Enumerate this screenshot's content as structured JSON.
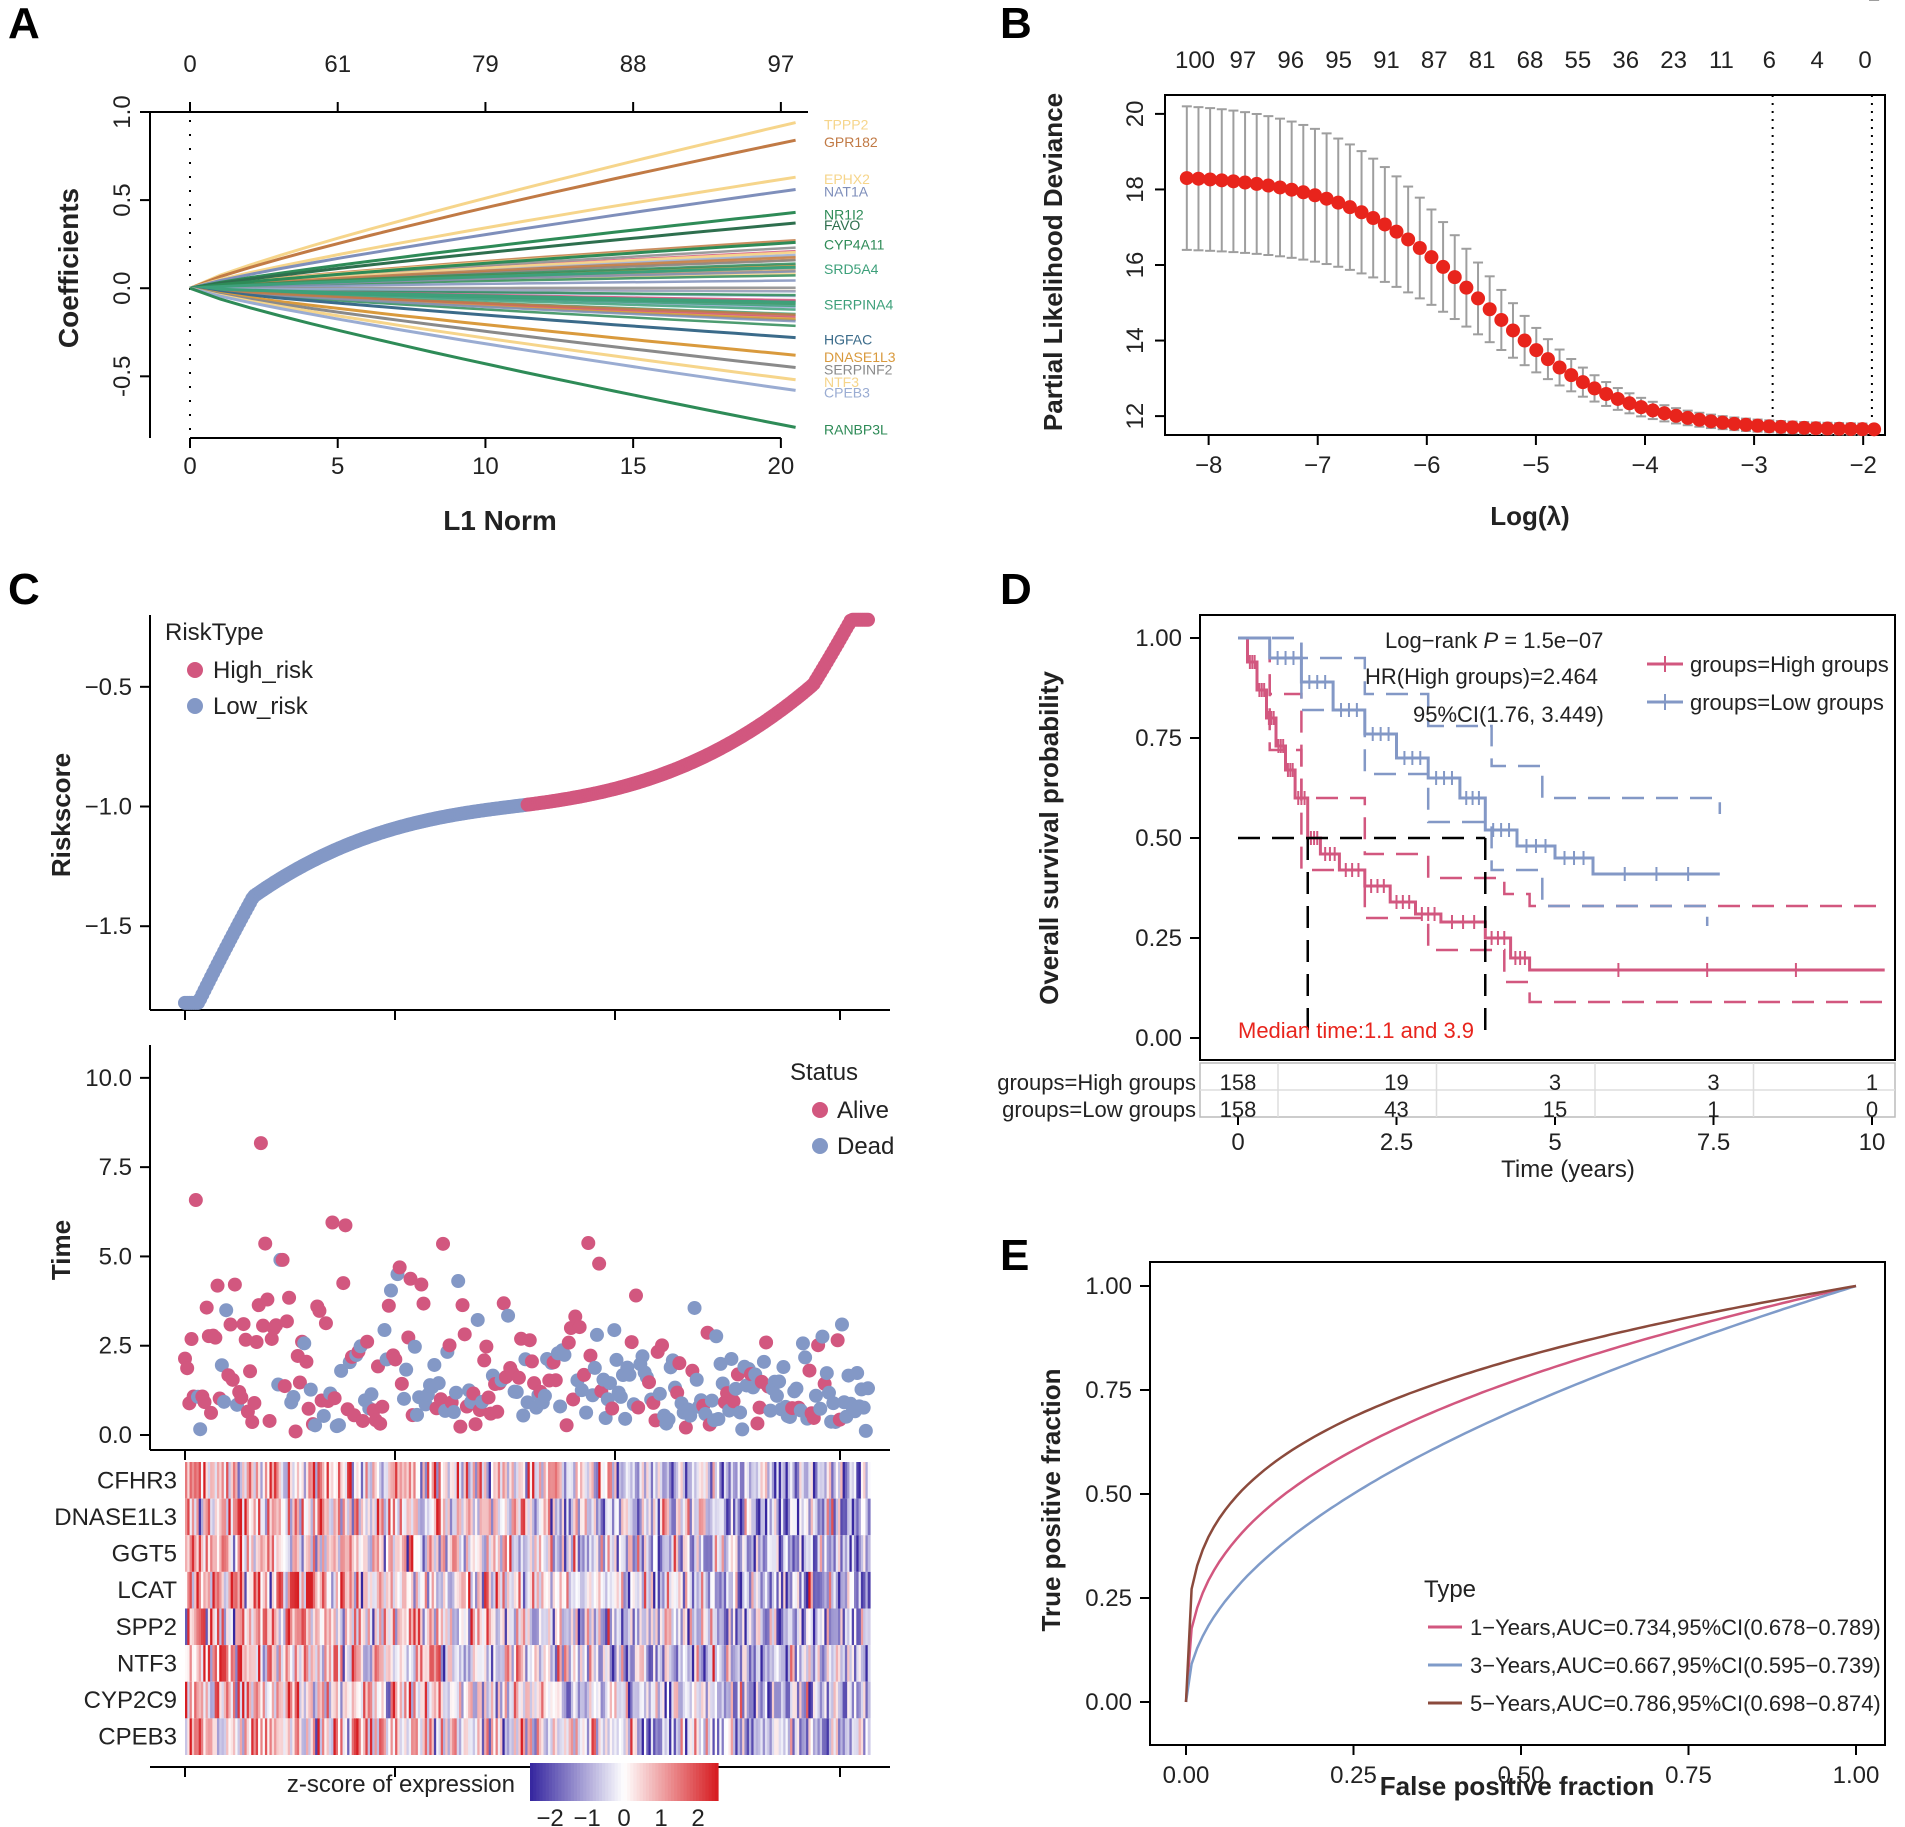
{
  "colors": {
    "high": "#d2577f",
    "low": "#8398c6",
    "red": "#e8241c",
    "green_med": "#2e8b57",
    "brown": "#8b4a3c"
  },
  "panel_labels": {
    "A": "A",
    "B": "B",
    "C": "C",
    "D": "D",
    "E": "E"
  },
  "chart_data": [
    {
      "id": "A",
      "type": "line",
      "title": "",
      "xlabel": "L1 Norm",
      "ylabel": "Coefficients",
      "xlim": [
        0,
        20.5
      ],
      "ylim": [
        -0.85,
        1.0
      ],
      "x_ticks": [
        "0",
        "5",
        "10",
        "15",
        "20"
      ],
      "y_ticks": [
        "-0.5",
        "0.0",
        "0.5",
        "1.0"
      ],
      "top_ticks": [
        "0",
        "61",
        "79",
        "88",
        "97"
      ],
      "top_tick_positions": [
        0,
        5,
        10,
        15,
        20
      ],
      "labeled_genes": [
        {
          "name": "TPPP2",
          "end": 0.94,
          "color": "#f6d58b"
        },
        {
          "name": "GPR182",
          "end": 0.84,
          "color": "#c17a45"
        },
        {
          "name": "EPHX2",
          "end": 0.63,
          "color": "#f6d58b"
        },
        {
          "name": "NAT1A",
          "end": 0.56,
          "color": "#7f8fbb"
        },
        {
          "name": "NR1I2",
          "end": 0.43,
          "color": "#2e8b57"
        },
        {
          "name": "FAVO",
          "end": 0.37,
          "color": "#2e6f4e"
        },
        {
          "name": "CYP4A11",
          "end": 0.26,
          "color": "#2e8b57"
        },
        {
          "name": "SRD5A4",
          "end": 0.12,
          "color": "#3da07a"
        },
        {
          "name": "SERPINA4",
          "end": -0.08,
          "color": "#3da07a"
        },
        {
          "name": "HGFAC",
          "end": -0.28,
          "color": "#3b6b8a"
        },
        {
          "name": "DNASE1L3",
          "end": -0.38,
          "color": "#d99a3d"
        },
        {
          "name": "SERPINF2",
          "end": -0.45,
          "color": "#8a8a8a"
        },
        {
          "name": "NTF3",
          "end": -0.52,
          "color": "#f6d58b"
        },
        {
          "name": "CPEB3",
          "end": -0.58,
          "color": "#9aacd2"
        },
        {
          "name": "RANBP3L",
          "end": -0.79,
          "color": "#2e8b57"
        }
      ]
    },
    {
      "id": "B",
      "type": "scatter",
      "xlabel": "Log(λ)",
      "ylabel": "Partial Likelihood Deviance",
      "xlim": [
        -8.4,
        -1.8
      ],
      "ylim": [
        11.5,
        20.5
      ],
      "x_ticks": [
        -8,
        -7,
        -6,
        -5,
        -4,
        -3,
        -2
      ],
      "y_ticks": [
        12,
        14,
        16,
        18,
        20
      ],
      "top_ticks": [
        "100",
        "97",
        "96",
        "95",
        "91",
        "87",
        "81",
        "68",
        "55",
        "36",
        "23",
        "11",
        "6",
        "4",
        "0"
      ],
      "x_start": -8.2,
      "x_end": -1.9,
      "n_points": 60,
      "deviance_start": 18.3,
      "deviance_end": 11.65,
      "vlines": [
        -2.83,
        -1.92
      ]
    },
    {
      "id": "C1",
      "type": "scatter",
      "xlabel": "",
      "ylabel": "Riskscore",
      "ylim": [
        -1.85,
        -0.2
      ],
      "y_ticks": [
        -1.5,
        -1.0,
        -0.5
      ],
      "legend_title": "RiskType",
      "legend": [
        "High_risk",
        "Low_risk"
      ],
      "n_samples": 316,
      "split_at": 158,
      "min": -1.82,
      "max": -0.22
    },
    {
      "id": "C2",
      "type": "scatter",
      "ylabel": "Time",
      "ylim": [
        0,
        10.5
      ],
      "y_ticks": [
        "0.0",
        "2.5",
        "5.0",
        "7.5",
        "10.0"
      ],
      "legend_title": "Status",
      "legend": [
        "Alive",
        "Dead"
      ],
      "n_samples": 316
    },
    {
      "id": "C3",
      "type": "heatmap",
      "genes": [
        "CFHR3",
        "DNASE1L3",
        "GGT5",
        "LCAT",
        "SPP2",
        "NTF3",
        "CYP2C9",
        "CPEB3"
      ],
      "colorbar_label": "z-score of expression",
      "colorbar_ticks": [
        "−2",
        "−1",
        "0",
        "1",
        "2"
      ],
      "vmin": -2.5,
      "vmax": 2.5
    },
    {
      "id": "D",
      "type": "line",
      "xlabel": "Time (years)",
      "ylabel": "Overall survival probability",
      "xlim": [
        0,
        10
      ],
      "ylim": [
        0,
        1
      ],
      "x_ticks": [
        "0",
        "2.5",
        "5",
        "7.5",
        "10"
      ],
      "y_ticks": [
        "0.00",
        "0.25",
        "0.50",
        "0.75",
        "1.00"
      ],
      "stats": {
        "logrank": "Log−rank",
        "p_italic": "P",
        "p_value": " = 1.5e−07",
        "hr": "HR(High groups)=2.464",
        "ci": "95%CI(1.76, 3.449)"
      },
      "median_text": "Median time:1.1 and 3.9",
      "median_high": 1.1,
      "median_low": 3.9,
      "series": [
        {
          "name": "groups=High groups",
          "steps": [
            [
              0,
              1
            ],
            [
              0.15,
              0.94
            ],
            [
              0.3,
              0.87
            ],
            [
              0.45,
              0.8
            ],
            [
              0.6,
              0.73
            ],
            [
              0.75,
              0.67
            ],
            [
              0.9,
              0.6
            ],
            [
              1.1,
              0.5
            ],
            [
              1.3,
              0.46
            ],
            [
              1.6,
              0.42
            ],
            [
              2.0,
              0.38
            ],
            [
              2.4,
              0.34
            ],
            [
              2.8,
              0.31
            ],
            [
              3.2,
              0.29
            ],
            [
              3.9,
              0.25
            ],
            [
              4.3,
              0.2
            ],
            [
              4.6,
              0.17
            ],
            [
              10.2,
              0.17
            ]
          ],
          "ci_upper": [
            [
              0,
              1
            ],
            [
              0.5,
              0.86
            ],
            [
              1.0,
              0.6
            ],
            [
              2.0,
              0.46
            ],
            [
              3.0,
              0.4
            ],
            [
              4.2,
              0.36
            ],
            [
              4.6,
              0.33
            ],
            [
              10.2,
              0.33
            ]
          ],
          "ci_lower": [
            [
              0,
              1
            ],
            [
              0.5,
              0.72
            ],
            [
              1.0,
              0.42
            ],
            [
              2.0,
              0.3
            ],
            [
              3.0,
              0.22
            ],
            [
              4.2,
              0.14
            ],
            [
              4.6,
              0.09
            ],
            [
              10.2,
              0.09
            ]
          ]
        },
        {
          "name": "groups=Low groups",
          "steps": [
            [
              0,
              1
            ],
            [
              0.5,
              0.95
            ],
            [
              1.0,
              0.89
            ],
            [
              1.5,
              0.82
            ],
            [
              2.0,
              0.76
            ],
            [
              2.5,
              0.7
            ],
            [
              3.0,
              0.65
            ],
            [
              3.5,
              0.6
            ],
            [
              3.9,
              0.52
            ],
            [
              4.4,
              0.48
            ],
            [
              5.0,
              0.45
            ],
            [
              5.6,
              0.41
            ],
            [
              7.6,
              0.41
            ]
          ],
          "ci_upper": [
            [
              0,
              1
            ],
            [
              1.0,
              0.95
            ],
            [
              2.0,
              0.86
            ],
            [
              3.0,
              0.78
            ],
            [
              4.0,
              0.68
            ],
            [
              4.8,
              0.6
            ],
            [
              7.6,
              0.56
            ]
          ],
          "ci_lower": [
            [
              0,
              1
            ],
            [
              1.0,
              0.82
            ],
            [
              2.0,
              0.66
            ],
            [
              3.0,
              0.54
            ],
            [
              4.0,
              0.42
            ],
            [
              4.8,
              0.33
            ],
            [
              7.4,
              0.28
            ]
          ]
        }
      ],
      "risk_table": {
        "rows": [
          {
            "label": "groups=High groups",
            "values": [
              "158",
              "19",
              "3",
              "3",
              "1"
            ]
          },
          {
            "label": "groups=Low groups",
            "values": [
              "158",
              "43",
              "15",
              "1",
              "0"
            ]
          }
        ]
      }
    },
    {
      "id": "E",
      "type": "line",
      "xlabel": "False positive fraction",
      "ylabel": "True positive fraction",
      "xlim": [
        0,
        1
      ],
      "ylim": [
        0,
        1
      ],
      "x_ticks": [
        "0.00",
        "0.25",
        "0.50",
        "0.75",
        "1.00"
      ],
      "y_ticks": [
        "0.00",
        "0.25",
        "0.50",
        "0.75",
        "1.00"
      ],
      "legend_title": "Type",
      "series": [
        {
          "name": "1−Years,AUC=0.734,95%CI(0.678−0.789)",
          "auc": 0.734,
          "color": "#d2577f"
        },
        {
          "name": "3−Years,AUC=0.667,95%CI(0.595−0.739)",
          "auc": 0.667,
          "color": "#7f9bc9"
        },
        {
          "name": "5−Years,AUC=0.786,95%CI(0.698−0.874)",
          "auc": 0.786,
          "color": "#8b4a3c"
        }
      ]
    }
  ]
}
